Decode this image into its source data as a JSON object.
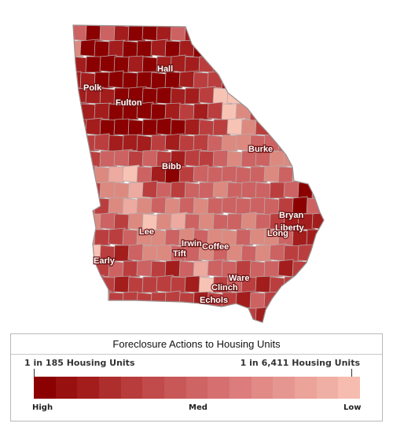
{
  "map": {
    "county_labels": [
      "Hall",
      "Polk",
      "Fulton",
      "Burke",
      "Bibb",
      "Bryan",
      "Liberty",
      "Long",
      "Lee",
      "Irwin",
      "Coffee",
      "Tift",
      "Early",
      "Ware",
      "Clinch",
      "Echols"
    ],
    "colors": {
      "darkest": "#8b0000",
      "dark": "#a31d1d",
      "mid_dark": "#bb3e3e",
      "mid": "#cd6262",
      "mid_light": "#dc8a80",
      "light": "#ecaaa0",
      "lightest": "#f7c3b5"
    }
  },
  "legend": {
    "title": "Foreclosure Actions to Housing Units",
    "left_end": "1 in 185 Housing Units",
    "right_end": "1 in 6,411 Housing Units",
    "scale_high": "High",
    "scale_med": "Med",
    "scale_low": "Low",
    "swatches": [
      "#8b0000",
      "#981010",
      "#a31d1d",
      "#ae2d2d",
      "#b83c3c",
      "#c14a4a",
      "#c85858",
      "#cf6464",
      "#d67070",
      "#dc7c7c",
      "#e18a86",
      "#e69690",
      "#eba39a",
      "#f0afa4",
      "#f6bcb0"
    ]
  }
}
